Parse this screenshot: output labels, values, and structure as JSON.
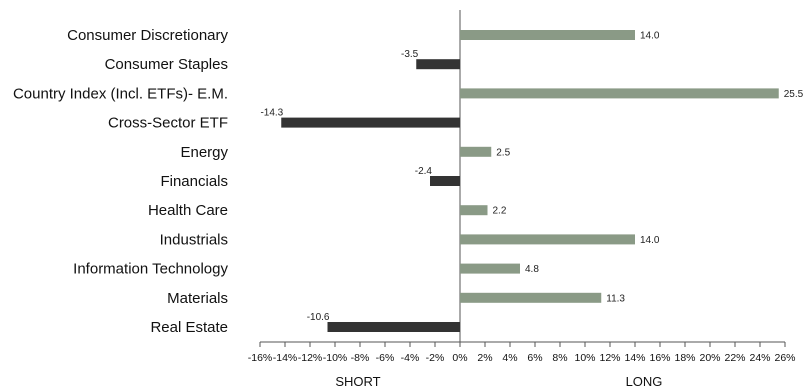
{
  "chart_data": {
    "type": "bar",
    "orientation": "horizontal",
    "categories": [
      "Consumer Discretionary",
      "Consumer Staples",
      "Country Index (Incl. ETFs)- E.M.",
      "Cross-Sector ETF",
      "Energy",
      "Financials",
      "Health Care",
      "Industrials",
      "Information Technology",
      "Materials",
      "Real Estate"
    ],
    "values": [
      14.0,
      -3.5,
      25.5,
      -14.3,
      2.5,
      -2.4,
      2.2,
      14.0,
      4.8,
      11.3,
      -10.6
    ],
    "value_labels": [
      "14.0",
      "-3.5",
      "25.5",
      "-14.3",
      "2.5",
      "-2.4",
      "2.2",
      "14.0",
      "4.8",
      "11.3",
      "-10.6"
    ],
    "xlim": [
      -16,
      26
    ],
    "x_ticks": [
      -16,
      -14,
      -12,
      -10,
      -8,
      -6,
      -4,
      -2,
      0,
      2,
      4,
      6,
      8,
      10,
      12,
      14,
      16,
      18,
      20,
      22,
      24,
      26
    ],
    "x_tick_labels": [
      "-16%",
      "-14%",
      "-12%",
      "-10%",
      "-8%",
      "-6%",
      "-4%",
      "-2%",
      "0%",
      "2%",
      "4%",
      "6%",
      "8%",
      "10%",
      "12%",
      "14%",
      "16%",
      "18%",
      "20%",
      "22%",
      "24%",
      "26%"
    ],
    "axis_titles": {
      "negative_side": "SHORT",
      "positive_side": "LONG"
    },
    "colors": {
      "positive": "#8a9a86",
      "negative": "#333333",
      "axis": "#555555"
    },
    "grid": false,
    "legend": "none"
  }
}
